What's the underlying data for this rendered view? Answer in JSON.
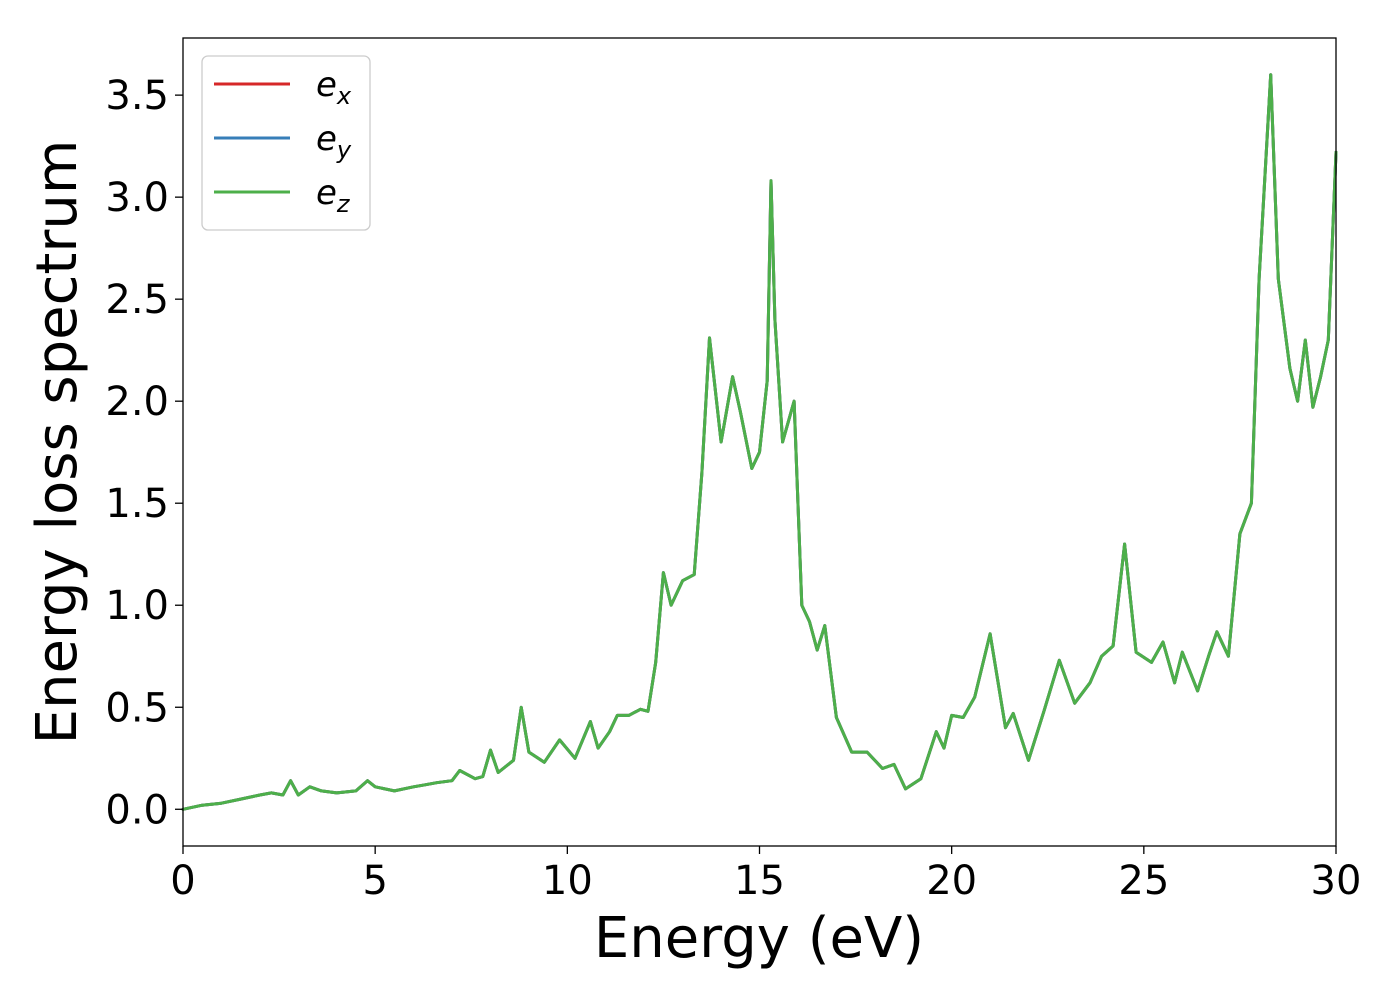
{
  "chart_data": {
    "type": "line",
    "xlabel": "Energy (eV)",
    "ylabel": "Energy loss spectrum",
    "xlim": [
      0,
      30
    ],
    "ylim": [
      -0.18,
      3.78
    ],
    "xticks": [
      0,
      5,
      10,
      15,
      20,
      25,
      30
    ],
    "xtick_labels": [
      "0",
      "5",
      "10",
      "15",
      "20",
      "25",
      "30"
    ],
    "yticks": [
      0.0,
      0.5,
      1.0,
      1.5,
      2.0,
      2.5,
      3.0,
      3.5
    ],
    "ytick_labels": [
      "0.0",
      "0.5",
      "1.0",
      "1.5",
      "2.0",
      "2.5",
      "3.0",
      "3.5"
    ],
    "grid": false,
    "legend_position": "top-left",
    "x": [
      0.0,
      0.5,
      1.0,
      1.5,
      2.0,
      2.3,
      2.6,
      2.8,
      3.0,
      3.3,
      3.6,
      4.0,
      4.5,
      4.8,
      5.0,
      5.5,
      6.0,
      6.3,
      6.6,
      7.0,
      7.2,
      7.6,
      7.8,
      8.0,
      8.2,
      8.6,
      8.8,
      9.0,
      9.4,
      9.8,
      10.2,
      10.6,
      10.8,
      11.1,
      11.3,
      11.6,
      11.9,
      12.1,
      12.3,
      12.5,
      12.7,
      13.0,
      13.3,
      13.5,
      13.7,
      14.0,
      14.3,
      14.5,
      14.8,
      15.0,
      15.2,
      15.3,
      15.4,
      15.6,
      15.9,
      16.1,
      16.3,
      16.5,
      16.7,
      17.0,
      17.4,
      17.8,
      18.2,
      18.5,
      18.8,
      19.2,
      19.6,
      19.8,
      20.0,
      20.3,
      20.6,
      21.0,
      21.4,
      21.6,
      22.0,
      22.4,
      22.8,
      23.2,
      23.6,
      23.9,
      24.2,
      24.5,
      24.8,
      25.2,
      25.5,
      25.8,
      26.0,
      26.4,
      26.7,
      26.9,
      27.2,
      27.5,
      27.8,
      28.0,
      28.3,
      28.5,
      28.8,
      29.0,
      29.2,
      29.4,
      29.6,
      29.8,
      30.0
    ],
    "series": [
      {
        "name": "x",
        "color": "#d62728",
        "values": [
          0.0,
          0.02,
          0.03,
          0.05,
          0.07,
          0.08,
          0.07,
          0.14,
          0.07,
          0.11,
          0.09,
          0.08,
          0.09,
          0.14,
          0.11,
          0.09,
          0.11,
          0.12,
          0.13,
          0.14,
          0.19,
          0.15,
          0.16,
          0.29,
          0.18,
          0.24,
          0.5,
          0.28,
          0.23,
          0.34,
          0.25,
          0.43,
          0.3,
          0.38,
          0.46,
          0.46,
          0.49,
          0.48,
          0.72,
          1.16,
          1.0,
          1.12,
          1.15,
          1.65,
          2.31,
          1.8,
          2.12,
          1.95,
          1.67,
          1.75,
          2.1,
          3.08,
          2.4,
          1.8,
          2.0,
          1.0,
          0.92,
          0.78,
          0.9,
          0.45,
          0.28,
          0.28,
          0.2,
          0.22,
          0.1,
          0.15,
          0.38,
          0.3,
          0.46,
          0.45,
          0.55,
          0.86,
          0.4,
          0.47,
          0.24,
          0.48,
          0.73,
          0.52,
          0.62,
          0.75,
          0.8,
          1.3,
          0.77,
          0.72,
          0.82,
          0.62,
          0.77,
          0.58,
          0.76,
          0.87,
          0.75,
          1.35,
          1.5,
          2.6,
          3.6,
          2.6,
          2.16,
          2.0,
          2.3,
          1.97,
          2.12,
          2.3,
          3.22
        ]
      },
      {
        "name": "y",
        "color": "#377eb8",
        "values": [
          0.0,
          0.02,
          0.03,
          0.05,
          0.07,
          0.08,
          0.07,
          0.14,
          0.07,
          0.11,
          0.09,
          0.08,
          0.09,
          0.14,
          0.11,
          0.09,
          0.11,
          0.12,
          0.13,
          0.14,
          0.19,
          0.15,
          0.16,
          0.29,
          0.18,
          0.24,
          0.5,
          0.28,
          0.23,
          0.34,
          0.25,
          0.43,
          0.3,
          0.38,
          0.46,
          0.46,
          0.49,
          0.48,
          0.72,
          1.16,
          1.0,
          1.12,
          1.15,
          1.65,
          2.31,
          1.8,
          2.12,
          1.95,
          1.67,
          1.75,
          2.1,
          3.08,
          2.4,
          1.8,
          2.0,
          1.0,
          0.92,
          0.78,
          0.9,
          0.45,
          0.28,
          0.28,
          0.2,
          0.22,
          0.1,
          0.15,
          0.38,
          0.3,
          0.46,
          0.45,
          0.55,
          0.86,
          0.4,
          0.47,
          0.24,
          0.48,
          0.73,
          0.52,
          0.62,
          0.75,
          0.8,
          1.3,
          0.77,
          0.72,
          0.82,
          0.62,
          0.77,
          0.58,
          0.76,
          0.87,
          0.75,
          1.35,
          1.5,
          2.6,
          3.6,
          2.6,
          2.16,
          2.0,
          2.3,
          1.97,
          2.12,
          2.3,
          3.22
        ]
      },
      {
        "name": "z",
        "color": "#4daf4a",
        "values": [
          0.0,
          0.02,
          0.03,
          0.05,
          0.07,
          0.08,
          0.07,
          0.14,
          0.07,
          0.11,
          0.09,
          0.08,
          0.09,
          0.14,
          0.11,
          0.09,
          0.11,
          0.12,
          0.13,
          0.14,
          0.19,
          0.15,
          0.16,
          0.29,
          0.18,
          0.24,
          0.5,
          0.28,
          0.23,
          0.34,
          0.25,
          0.43,
          0.3,
          0.38,
          0.46,
          0.46,
          0.49,
          0.48,
          0.72,
          1.16,
          1.0,
          1.12,
          1.15,
          1.65,
          2.31,
          1.8,
          2.12,
          1.95,
          1.67,
          1.75,
          2.1,
          3.08,
          2.4,
          1.8,
          2.0,
          1.0,
          0.92,
          0.78,
          0.9,
          0.45,
          0.28,
          0.28,
          0.2,
          0.22,
          0.1,
          0.15,
          0.38,
          0.3,
          0.46,
          0.45,
          0.55,
          0.86,
          0.4,
          0.47,
          0.24,
          0.48,
          0.73,
          0.52,
          0.62,
          0.75,
          0.8,
          1.3,
          0.77,
          0.72,
          0.82,
          0.62,
          0.77,
          0.58,
          0.76,
          0.87,
          0.75,
          1.35,
          1.5,
          2.6,
          3.6,
          2.6,
          2.16,
          2.0,
          2.3,
          1.97,
          2.12,
          2.3,
          3.22
        ]
      }
    ],
    "legend": {
      "entries": [
        {
          "base": "e",
          "sub": "x",
          "color": "#d62728"
        },
        {
          "base": "e",
          "sub": "y",
          "color": "#377eb8"
        },
        {
          "base": "e",
          "sub": "z",
          "color": "#4daf4a"
        }
      ]
    }
  }
}
